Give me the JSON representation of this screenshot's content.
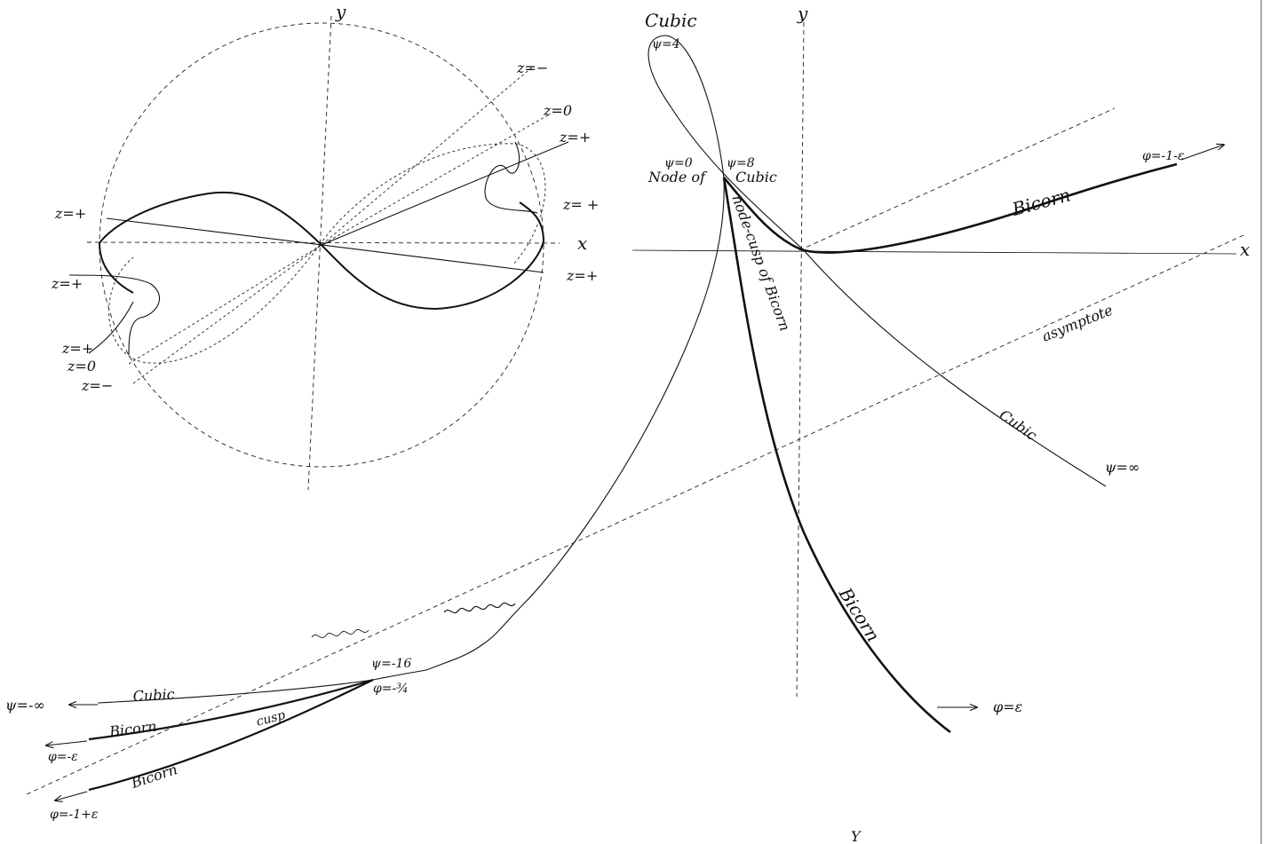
{
  "labels": {
    "left_y": "y",
    "left_x": "x",
    "z_minus_top": "z=−",
    "z_zero_top": "z=0",
    "z_plus_top": "z=+",
    "z_plus_right": "z= +",
    "z_plus_left_upper": "z=+",
    "z_plus_right_lower": "z=+",
    "z_plus_left_mid": "z=+",
    "z_plus_left_low": "z=+",
    "z_zero_left": "z=0",
    "z_minus_left": "z=−",
    "right_y": "y",
    "right_x": "x",
    "cubic_top": "Cubic",
    "psi_4": "ψ=4",
    "psi_0": "ψ=0",
    "psi_8": "ψ=8",
    "node_of": "Node of",
    "cubic_node": "Cubic",
    "node_cusp": "node-cusp of Bicorn",
    "bicorn_upper": "Bicorn",
    "phi_1_eps": "φ=-1-ε",
    "asymptote": "asymptote",
    "cubic_lower_right": "Cubic",
    "psi_inf": "ψ=∞",
    "bicorn_lower_right": "Bicorn",
    "phi_eps": "φ=ε",
    "psi_neg16": "ψ=-16",
    "phi_neg34": "φ=-¾",
    "psi_neg_inf": "ψ=-∞",
    "cubic_lower_left": "Cubic",
    "bicorn_lower_left1": "Bicorn",
    "cusp": "cusp",
    "phi_neg_eps": "φ=-ε",
    "bicorn_lower_left2": "Bicorn",
    "phi_neg1_eps": "φ=-1+ε",
    "bottom_y": "Y"
  }
}
